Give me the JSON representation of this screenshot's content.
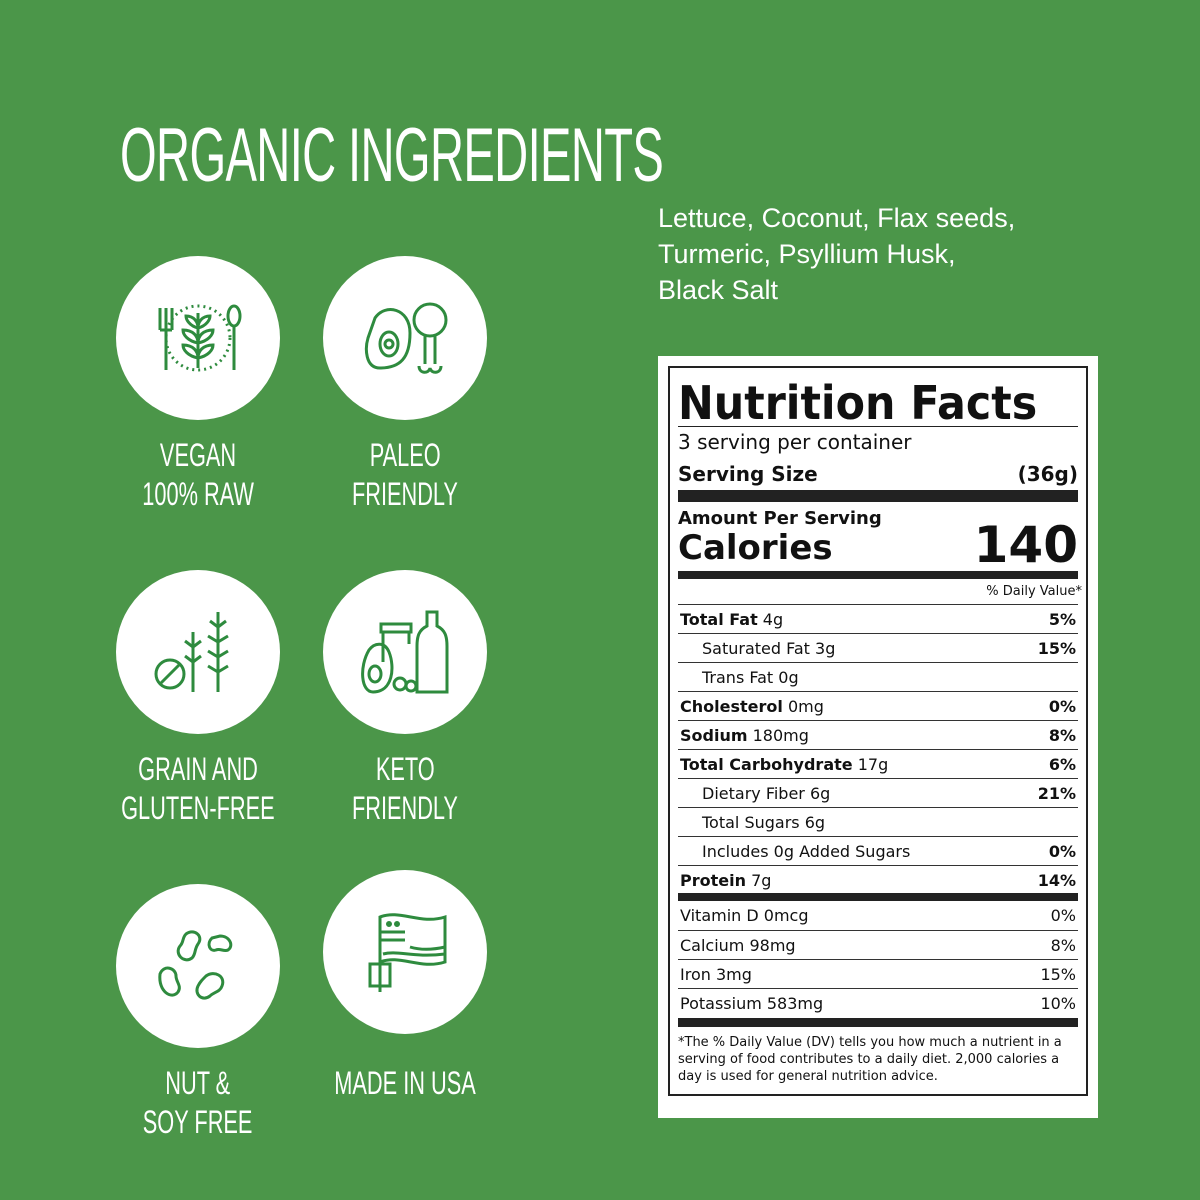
{
  "title": "ORGANIC INGREDIENTS",
  "ingredients": [
    "Lettuce, Coconut, Flax seeds,",
    "Turmeric, Psyllium Husk,",
    "Black Salt"
  ],
  "badges": [
    {
      "icon": "vegan-utensils-icon",
      "line1": "VEGAN",
      "line2": "100% RAW"
    },
    {
      "icon": "paleo-meat-icon",
      "line1": "PALEO",
      "line2": "FRIENDLY"
    },
    {
      "icon": "grain-free-icon",
      "line1": "GRAIN AND",
      "line2": "GLUTEN-FREE"
    },
    {
      "icon": "keto-food-icon",
      "line1": "KETO",
      "line2": "FRIENDLY"
    },
    {
      "icon": "nut-soy-free-beans-icon",
      "line1": "NUT &",
      "line2": "SOY FREE"
    },
    {
      "icon": "usa-flag-icon",
      "line1": "MADE IN USA",
      "line2": ""
    }
  ],
  "nutrition": {
    "title": "Nutrition Facts",
    "servings": "3 serving per container",
    "serving_size_label": "Serving Size",
    "serving_size": "(36g)",
    "amount_per_serving": "Amount Per Serving",
    "calories_label": "Calories",
    "calories": "140",
    "dv_header": "% Daily Value*",
    "rows": [
      {
        "bold": "Total Fat",
        "amount": " 4g",
        "dv": "5%",
        "indent": false
      },
      {
        "bold": "",
        "amount": "Saturated Fat 3g",
        "dv": "15%",
        "indent": true
      },
      {
        "bold": "",
        "amount": "Trans Fat 0g",
        "dv": "",
        "indent": true
      },
      {
        "bold": "Cholesterol",
        "amount": " 0mg",
        "dv": "0%",
        "indent": false
      },
      {
        "bold": "Sodium",
        "amount": " 180mg",
        "dv": "8%",
        "indent": false
      },
      {
        "bold": "Total Carbohydrate",
        "amount": " 17g",
        "dv": "6%",
        "indent": false
      },
      {
        "bold": "",
        "amount": "Dietary Fiber 6g",
        "dv": "21%",
        "indent": true
      },
      {
        "bold": "",
        "amount": "Total Sugars 6g",
        "dv": "",
        "indent": true
      },
      {
        "bold": "",
        "amount": "Includes 0g Added Sugars",
        "dv": "0%",
        "indent": true
      },
      {
        "bold": "Protein",
        "amount": " 7g",
        "dv": "14%",
        "indent": false
      }
    ],
    "vitamins": [
      {
        "name": "Vitamin D 0mcg",
        "dv": "0%"
      },
      {
        "name": "Calcium 98mg",
        "dv": "8%"
      },
      {
        "name": "Iron 3mg",
        "dv": "15%"
      },
      {
        "name": "Potassium 583mg",
        "dv": "10%"
      }
    ],
    "footnote": "*The % Daily Value (DV) tells you how much a nutrient in a serving of food contributes to a daily diet. 2,000 calories a day is used for general nutrition advice."
  },
  "colors": {
    "background": "#4b9649",
    "icon": "#2e8b3e"
  }
}
